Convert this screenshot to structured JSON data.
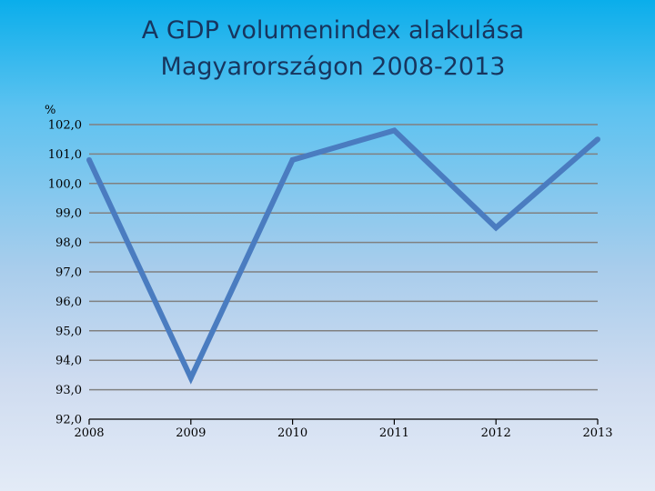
{
  "slide": {
    "title_line1": "A GDP volumenindex alakulása",
    "title_line2": "Magyarországon 2008-2013"
  },
  "chart_data": {
    "type": "line",
    "title": "A GDP volumenindex alakulása Magyarországon 2008-2013",
    "ylabel": "%",
    "xlabel": "",
    "categories": [
      "2008",
      "2009",
      "2010",
      "2011",
      "2012",
      "2013"
    ],
    "series": [
      {
        "values": [
          100.8,
          93.4,
          100.8,
          101.8,
          98.5,
          101.5
        ]
      }
    ],
    "ylim": [
      92.0,
      102.0
    ],
    "yticks": [
      102.0,
      101.0,
      100.0,
      99.0,
      98.0,
      97.0,
      96.0,
      95.0,
      94.0,
      93.0,
      92.0
    ],
    "ytick_labels": [
      "102,0",
      "101,0",
      "100,0",
      "99,0",
      "98,0",
      "97,0",
      "96,0",
      "95,0",
      "94,0",
      "93,0",
      "92,0"
    ],
    "grid": true,
    "legend": "none",
    "line_color": "#4a7cc0",
    "grid_color": "#808080"
  }
}
